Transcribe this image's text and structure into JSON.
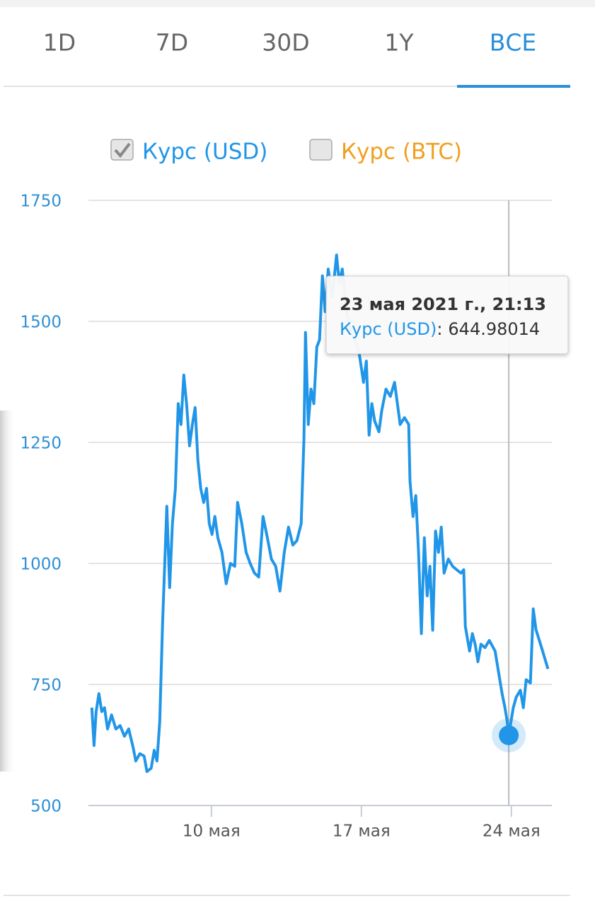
{
  "tabs": {
    "items": [
      "1D",
      "7D",
      "30D",
      "1Y",
      "ВСЕ"
    ],
    "active": 4
  },
  "chart_data": {
    "type": "line",
    "legend": [
      {
        "name": "Курс (USD)",
        "color": "#2196e8",
        "checked": true
      },
      {
        "name": "Курс (BTC)",
        "color": "#f0a020",
        "checked": false
      }
    ],
    "x": [
      4.42,
      4.52,
      4.62,
      4.75,
      4.88,
      5.01,
      5.15,
      5.34,
      5.54,
      5.74,
      5.94,
      6.14,
      6.34,
      6.47,
      6.66,
      6.86,
      6.99,
      7.19,
      7.33,
      7.46,
      7.59,
      7.72,
      7.92,
      8.05,
      8.18,
      8.32,
      8.45,
      8.58,
      8.71,
      8.84,
      8.98,
      9.11,
      9.24,
      9.37,
      9.5,
      9.64,
      9.77,
      9.9,
      10.03,
      10.16,
      10.3,
      10.49,
      10.69,
      10.89,
      11.09,
      11.22,
      11.42,
      11.62,
      11.81,
      12.01,
      12.21,
      12.41,
      12.61,
      12.8,
      13.0,
      13.2,
      13.4,
      13.6,
      13.8,
      13.99,
      14.19,
      14.32,
      14.39,
      14.52,
      14.65,
      14.78,
      14.92,
      15.05,
      15.18,
      15.31,
      15.45,
      15.64,
      15.84,
      15.97,
      16.11,
      16.3,
      16.5,
      16.7,
      16.9,
      17.1,
      17.23,
      17.36,
      17.49,
      17.62,
      17.82,
      17.95,
      18.15,
      18.35,
      18.55,
      18.68,
      18.81,
      19.01,
      19.21,
      19.27,
      19.41,
      19.54,
      19.67,
      19.8,
      19.94,
      20.07,
      20.2,
      20.33,
      20.46,
      20.6,
      20.73,
      20.86,
      21.06,
      21.26,
      21.45,
      21.65,
      21.78,
      21.85,
      22.05,
      22.18,
      22.31,
      22.44,
      22.58,
      22.77,
      22.97,
      23.24,
      23.43,
      23.57,
      23.7,
      23.8,
      23.88,
      24.09,
      24.23,
      24.42,
      24.56,
      24.69,
      24.89,
      25.02,
      25.15,
      25.41,
      25.71
    ],
    "series": [
      {
        "name": "Курс (USD)",
        "color": "#2196e8",
        "values": [
          702,
          624,
          694,
          731,
          694,
          702,
          658,
          687,
          658,
          665,
          643,
          658,
          621,
          592,
          607,
          602,
          570,
          577,
          614,
          592,
          673,
          877,
          1118,
          950,
          1082,
          1155,
          1330,
          1287,
          1389,
          1330,
          1243,
          1287,
          1322,
          1213,
          1155,
          1126,
          1155,
          1082,
          1060,
          1097,
          1053,
          1023,
          958,
          1000,
          994,
          1126,
          1082,
          1023,
          1000,
          980,
          972,
          1097,
          1053,
          1009,
          994,
          943,
          1023,
          1075,
          1038,
          1047,
          1082,
          1257,
          1477,
          1287,
          1360,
          1330,
          1447,
          1462,
          1594,
          1520,
          1608,
          1550,
          1637,
          1579,
          1608,
          1520,
          1477,
          1462,
          1433,
          1374,
          1418,
          1265,
          1330,
          1294,
          1272,
          1316,
          1360,
          1345,
          1374,
          1330,
          1287,
          1301,
          1287,
          1170,
          1097,
          1140,
          1023,
          855,
          1053,
          933,
          994,
          862,
          1067,
          1023,
          1075,
          980,
          1009,
          994,
          987,
          980,
          987,
          870,
          819,
          855,
          833,
          797,
          833,
          826,
          841,
          819,
          768,
          731,
          702,
          675,
          644.98014,
          702,
          724,
          738,
          702,
          760,
          753,
          906,
          863,
          826,
          782
        ]
      }
    ],
    "xlim": [
      4.26,
      25.89
    ],
    "xticks": [
      {
        "value": 10,
        "label": "10 мая"
      },
      {
        "value": 17,
        "label": "17 мая"
      },
      {
        "value": 24,
        "label": "24 мая"
      }
    ],
    "ylim": [
      500,
      1750
    ],
    "yticks": [
      500,
      750,
      1000,
      1250,
      1500,
      1750
    ],
    "grid": true,
    "selected_index": 124,
    "tooltip": {
      "title": "23 мая 2021 г., 21:13",
      "separator": ":"
    }
  }
}
